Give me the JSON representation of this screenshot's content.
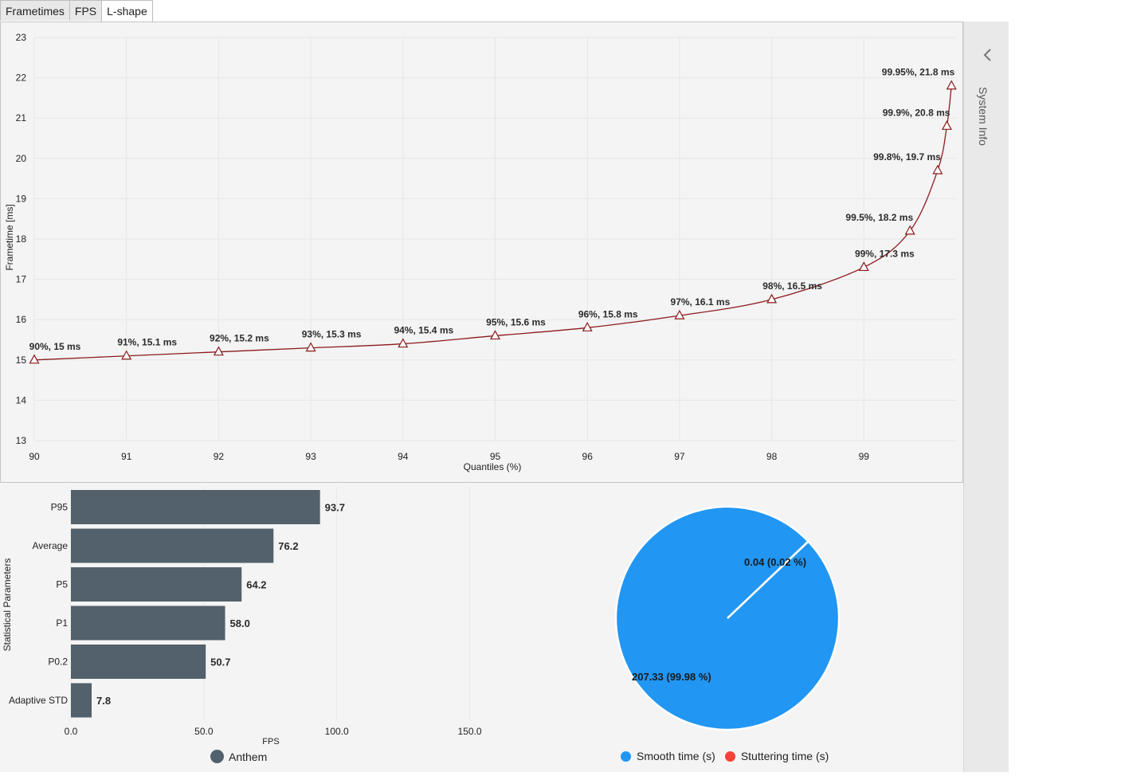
{
  "tabs": [
    {
      "label": "Frametimes"
    },
    {
      "label": "FPS"
    },
    {
      "label": "L-shape"
    }
  ],
  "side_panel": {
    "label": "System Info"
  },
  "colors": {
    "line": "#8b1a1a",
    "bar": "#52616b",
    "smooth": "#2196f3",
    "stutter": "#f44336",
    "panel_bg": "#f4f4f4"
  },
  "chart_data": [
    {
      "type": "line",
      "xlabel": "Quantiles (%)",
      "ylabel": "Frametime [ms]",
      "x_ticks": [
        "90",
        "91",
        "92",
        "93",
        "94",
        "95",
        "96",
        "97",
        "98",
        "99"
      ],
      "y_ticks": [
        "13",
        "14",
        "15",
        "16",
        "17",
        "18",
        "19",
        "20",
        "21",
        "22",
        "23"
      ],
      "xlim": [
        90,
        100
      ],
      "ylim": [
        13,
        23
      ],
      "points": [
        {
          "x": 90,
          "y": 15,
          "label": "90%, 15 ms"
        },
        {
          "x": 91,
          "y": 15.1,
          "label": "91%, 15.1 ms"
        },
        {
          "x": 92,
          "y": 15.2,
          "label": "92%, 15.2 ms"
        },
        {
          "x": 93,
          "y": 15.3,
          "label": "93%, 15.3 ms"
        },
        {
          "x": 94,
          "y": 15.4,
          "label": "94%, 15.4 ms"
        },
        {
          "x": 95,
          "y": 15.6,
          "label": "95%, 15.6 ms"
        },
        {
          "x": 96,
          "y": 15.8,
          "label": "96%, 15.8 ms"
        },
        {
          "x": 97,
          "y": 16.1,
          "label": "97%, 16.1 ms"
        },
        {
          "x": 98,
          "y": 16.5,
          "label": "98%, 16.5 ms"
        },
        {
          "x": 99,
          "y": 17.3,
          "label": "99%, 17.3 ms"
        },
        {
          "x": 99.5,
          "y": 18.2,
          "label": "99.5%, 18.2 ms"
        },
        {
          "x": 99.8,
          "y": 19.7,
          "label": "99.8%, 19.7 ms"
        },
        {
          "x": 99.9,
          "y": 20.8,
          "label": "99.9%, 20.8 ms"
        },
        {
          "x": 99.95,
          "y": 21.8,
          "label": "99.95%, 21.8 ms"
        }
      ]
    },
    {
      "type": "bar",
      "orientation": "horizontal",
      "ylabel": "Statistical Parameters",
      "xlabel": "FPS",
      "x_ticks": [
        "0.0",
        "50.0",
        "100.0",
        "150.0"
      ],
      "xlim": [
        0,
        150
      ],
      "series_name": "Anthem",
      "categories": [
        "P95",
        "Average",
        "P5",
        "P1",
        "P0.2",
        "Adaptive STD"
      ],
      "values": [
        93.7,
        76.2,
        64.2,
        58.0,
        50.7,
        7.8
      ],
      "value_labels": [
        "93.7",
        "76.2",
        "64.2",
        "58.0",
        "50.7",
        "7.8"
      ]
    },
    {
      "type": "pie",
      "slices": [
        {
          "name": "Smooth time (s)",
          "value": 207.33,
          "label": "207.33 (99.98 %)"
        },
        {
          "name": "Stuttering time (s)",
          "value": 0.04,
          "label": "0.04 (0.02 %)"
        }
      ]
    }
  ]
}
